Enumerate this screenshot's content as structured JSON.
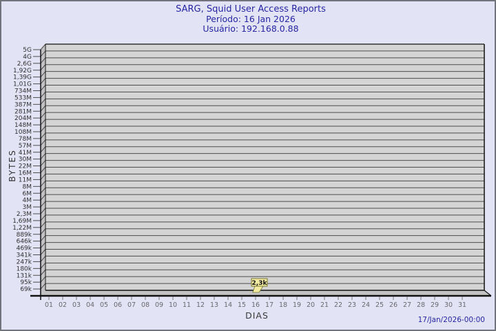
{
  "header": {
    "title": "SARG, Squid User Access Reports",
    "period_line": "Período: 16 Jan 2026",
    "user_line": "Usuário: 192.168.0.88"
  },
  "axes": {
    "y_label": "BYTES",
    "x_label": "DIAS"
  },
  "footer": {
    "timestamp": "17/Jan/2026-00:00"
  },
  "chart_data": {
    "type": "bar",
    "title": "SARG, Squid User Access Reports",
    "subtitle": "Período: 16 Jan 2026 / Usuário: 192.168.0.88",
    "xlabel": "DIAS",
    "ylabel": "BYTES",
    "grid": true,
    "legend_position": "none",
    "y_scale": "log-like (SARG bytes scale)",
    "y_tick_labels": [
      "5G",
      "4G",
      "2,6G",
      "1,92G",
      "1,39G",
      "1,01G",
      "734M",
      "533M",
      "387M",
      "281M",
      "204M",
      "148M",
      "108M",
      "78M",
      "57M",
      "41M",
      "30M",
      "22M",
      "16M",
      "11M",
      "8M",
      "6M",
      "4M",
      "3M",
      "2,3M",
      "1,69M",
      "1,22M",
      "889k",
      "646k",
      "469k",
      "341k",
      "247k",
      "180k",
      "131k",
      "95k",
      "69k"
    ],
    "categories": [
      "01",
      "02",
      "03",
      "04",
      "05",
      "06",
      "07",
      "08",
      "09",
      "10",
      "11",
      "12",
      "13",
      "14",
      "15",
      "16",
      "17",
      "18",
      "19",
      "20",
      "21",
      "22",
      "23",
      "24",
      "25",
      "26",
      "27",
      "28",
      "29",
      "30",
      "31"
    ],
    "values": [
      null,
      null,
      null,
      null,
      null,
      null,
      null,
      null,
      null,
      null,
      null,
      null,
      null,
      null,
      null,
      2300,
      null,
      null,
      null,
      null,
      null,
      null,
      null,
      null,
      null,
      null,
      null,
      null,
      null,
      null,
      null
    ],
    "annotations": [
      {
        "category": "16",
        "category_index": 15,
        "label": "2,3k",
        "value_bytes": 2300
      }
    ]
  },
  "colors": {
    "background": "#e3e3f6",
    "outer_border": "#73737d",
    "title_text": "#2626a3",
    "plot_background": "#d4d4d4",
    "wall": "#c2c2c4",
    "grid_line": "#4c4c4c",
    "frame_line": "#111111",
    "y_tick_text": "#2f2f2f",
    "x_tick_text": "#68686c",
    "annotation_fill": "#f3eba1",
    "annotation_border": "#77772f"
  }
}
